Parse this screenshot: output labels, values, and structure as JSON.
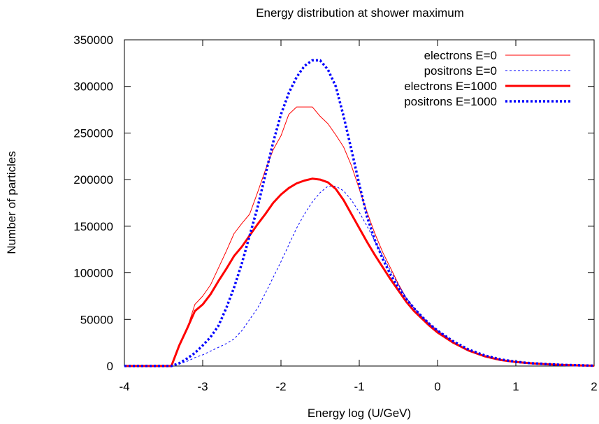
{
  "chart_data": {
    "type": "line",
    "title": "Energy distribution at shower maximum",
    "xlabel": "Energy log (U/GeV)",
    "ylabel": "Number of particles",
    "xlim": [
      -4,
      2
    ],
    "ylim": [
      0,
      350000
    ],
    "xticks": [
      -4,
      -3,
      -2,
      -1,
      0,
      1,
      2
    ],
    "yticks": [
      0,
      50000,
      100000,
      150000,
      200000,
      250000,
      300000,
      350000
    ],
    "grid": false,
    "legend_position": "top-right",
    "series": [
      {
        "name": "electrons E=0",
        "color": "#ff0000",
        "style": "solid-thin",
        "x": [
          -4.0,
          -3.4,
          -3.3,
          -3.2,
          -3.1,
          -3.0,
          -2.9,
          -2.8,
          -2.7,
          -2.6,
          -2.5,
          -2.4,
          -2.3,
          -2.2,
          -2.1,
          -2.0,
          -1.9,
          -1.8,
          -1.7,
          -1.6,
          -1.5,
          -1.4,
          -1.3,
          -1.2,
          -1.1,
          -1.0,
          -0.9,
          -0.8,
          -0.7,
          -0.6,
          -0.5,
          -0.4,
          -0.3,
          -0.2,
          -0.1,
          0.0,
          0.2,
          0.4,
          0.6,
          0.8,
          1.0,
          1.2,
          1.4,
          1.6,
          1.8,
          2.0
        ],
        "y": [
          0,
          0,
          22000,
          40000,
          66000,
          75000,
          87000,
          105000,
          123000,
          142000,
          153000,
          163000,
          186000,
          210000,
          232000,
          247000,
          270000,
          278000,
          278000,
          278000,
          268000,
          260000,
          248000,
          235000,
          215000,
          190000,
          165000,
          142000,
          122000,
          105000,
          88000,
          73000,
          62000,
          53000,
          45000,
          38000,
          26000,
          17000,
          11000,
          7000,
          4500,
          3000,
          2000,
          1300,
          800,
          400
        ]
      },
      {
        "name": "positrons E=0",
        "color": "#0000ff",
        "style": "dashed-thin",
        "x": [
          -4.0,
          -3.4,
          -3.3,
          -3.2,
          -3.1,
          -3.0,
          -2.9,
          -2.8,
          -2.7,
          -2.6,
          -2.5,
          -2.4,
          -2.3,
          -2.2,
          -2.1,
          -2.0,
          -1.9,
          -1.8,
          -1.7,
          -1.6,
          -1.5,
          -1.4,
          -1.3,
          -1.2,
          -1.1,
          -1.0,
          -0.9,
          -0.8,
          -0.7,
          -0.6,
          -0.5,
          -0.4,
          -0.3,
          -0.2,
          -0.1,
          0.0,
          0.2,
          0.4,
          0.6,
          0.8,
          1.0,
          1.2,
          1.4,
          1.6,
          1.8,
          2.0
        ],
        "y": [
          0,
          0,
          2000,
          5000,
          9000,
          12000,
          16000,
          20000,
          24000,
          29000,
          38000,
          50000,
          62000,
          78000,
          95000,
          112000,
          130000,
          148000,
          163000,
          176000,
          186000,
          193000,
          193000,
          188000,
          178000,
          165000,
          150000,
          134000,
          118000,
          102000,
          87000,
          73000,
          62000,
          53000,
          45000,
          38000,
          26000,
          17000,
          11000,
          7000,
          4500,
          3000,
          2000,
          1300,
          800,
          400
        ]
      },
      {
        "name": "electrons E=1000",
        "color": "#ff0000",
        "style": "solid-thick",
        "x": [
          -4.0,
          -3.4,
          -3.3,
          -3.2,
          -3.1,
          -3.0,
          -2.9,
          -2.8,
          -2.7,
          -2.6,
          -2.5,
          -2.4,
          -2.3,
          -2.2,
          -2.1,
          -2.0,
          -1.9,
          -1.8,
          -1.7,
          -1.6,
          -1.5,
          -1.4,
          -1.3,
          -1.2,
          -1.1,
          -1.0,
          -0.9,
          -0.8,
          -0.7,
          -0.6,
          -0.5,
          -0.4,
          -0.3,
          -0.2,
          -0.1,
          0.0,
          0.2,
          0.4,
          0.6,
          0.8,
          1.0,
          1.2,
          1.4,
          1.6,
          1.8,
          2.0
        ],
        "y": [
          0,
          0,
          22000,
          40000,
          59000,
          66000,
          77000,
          91000,
          104000,
          118000,
          128000,
          140000,
          152000,
          163000,
          175000,
          184000,
          191000,
          196000,
          199000,
          201000,
          200000,
          197000,
          190000,
          178000,
          163000,
          148000,
          133000,
          119000,
          106000,
          93000,
          81000,
          69000,
          59000,
          51000,
          43000,
          36000,
          25000,
          16500,
          10500,
          6500,
          4300,
          2900,
          1900,
          1200,
          700,
          400
        ]
      },
      {
        "name": "positrons E=1000",
        "color": "#0000ff",
        "style": "dotted-thick",
        "x": [
          -4.0,
          -3.4,
          -3.3,
          -3.2,
          -3.1,
          -3.0,
          -2.9,
          -2.8,
          -2.7,
          -2.6,
          -2.5,
          -2.4,
          -2.3,
          -2.2,
          -2.1,
          -2.0,
          -1.9,
          -1.8,
          -1.7,
          -1.6,
          -1.5,
          -1.4,
          -1.3,
          -1.2,
          -1.1,
          -1.0,
          -0.9,
          -0.8,
          -0.7,
          -0.6,
          -0.5,
          -0.4,
          -0.3,
          -0.2,
          -0.1,
          0.0,
          0.2,
          0.4,
          0.6,
          0.8,
          1.0,
          1.2,
          1.4,
          1.6,
          1.8,
          2.0
        ],
        "y": [
          0,
          0,
          3000,
          8000,
          14000,
          22000,
          31000,
          43000,
          62000,
          84000,
          110000,
          140000,
          170000,
          205000,
          240000,
          270000,
          293000,
          310000,
          322000,
          328000,
          328000,
          318000,
          300000,
          268000,
          232000,
          195000,
          160000,
          135000,
          115000,
          98000,
          84000,
          72000,
          62000,
          53000,
          45000,
          38000,
          26500,
          17500,
          11500,
          7200,
          4600,
          3000,
          2000,
          1300,
          800,
          400
        ]
      }
    ]
  }
}
